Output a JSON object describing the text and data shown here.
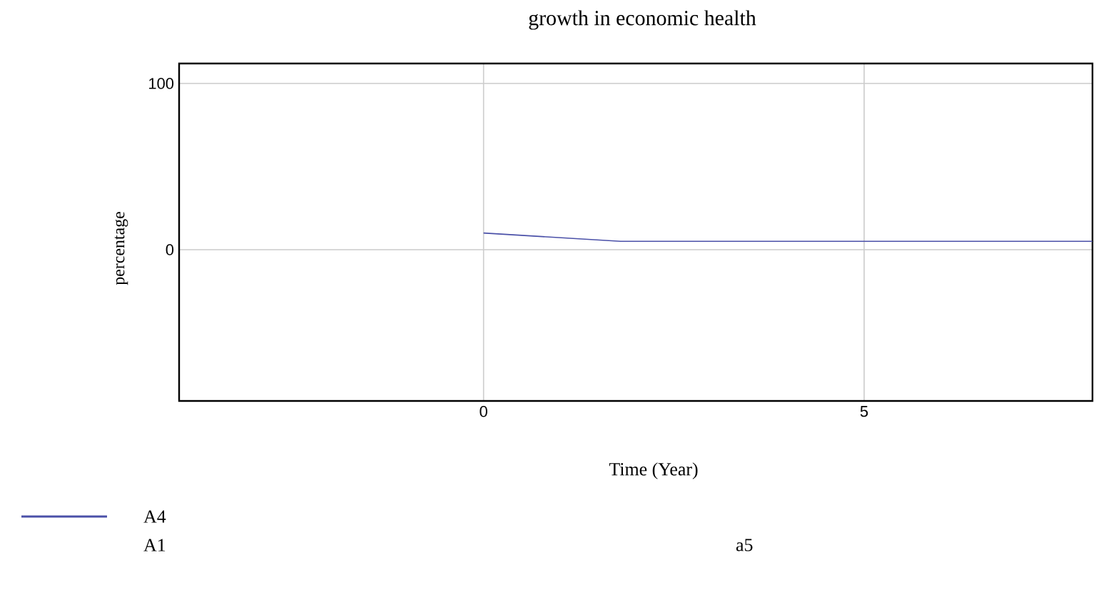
{
  "chart_data": {
    "type": "line",
    "title": "growth in economic health",
    "xlabel": "Time (Year)",
    "ylabel": "percentage",
    "xlim": [
      -4,
      8
    ],
    "ylim": [
      -91,
      112
    ],
    "xticks": [
      0,
      5
    ],
    "yticks": [
      0,
      100
    ],
    "grid": true,
    "legend": "bottom left",
    "annotations": [
      "A1",
      "a5"
    ],
    "series": [
      {
        "name": "A4",
        "color": "#4a50a8",
        "x": [
          0,
          1.8,
          8
        ],
        "values": [
          10,
          5,
          5
        ]
      }
    ]
  }
}
